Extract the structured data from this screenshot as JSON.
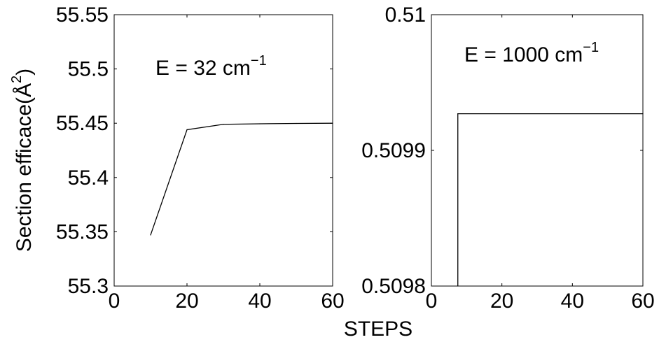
{
  "chart_data": [
    {
      "type": "line",
      "annotation": {
        "prefix": "E = 32 cm",
        "superscript": "−1"
      },
      "ylabel": {
        "base": "Section efficace(Å",
        "superscript": "2",
        "close": ")"
      },
      "xlim": [
        0,
        60
      ],
      "ylim": [
        55.3,
        55.55
      ],
      "xticks": [
        0,
        20,
        40,
        60
      ],
      "xtick_labels": [
        "0",
        "20",
        "40",
        "60"
      ],
      "yticks": [
        55.3,
        55.35,
        55.4,
        55.45,
        55.5,
        55.55
      ],
      "ytick_labels": [
        "55.3",
        "55.35",
        "55.4",
        "55.45",
        "55.5",
        "55.55"
      ],
      "x": [
        10,
        20,
        30,
        40,
        50,
        60
      ],
      "y": [
        55.347,
        55.444,
        55.449,
        55.4495,
        55.4498,
        55.45
      ],
      "color": "#000000",
      "grid": false
    },
    {
      "type": "line",
      "annotation": {
        "prefix": "E = 1000 cm",
        "superscript": "−1"
      },
      "xlim": [
        0,
        60
      ],
      "ylim": [
        0.5098,
        0.51
      ],
      "xticks": [
        0,
        20,
        40,
        60
      ],
      "xtick_labels": [
        "0",
        "20",
        "40",
        "60"
      ],
      "yticks": [
        0.5098,
        0.5099,
        0.51
      ],
      "ytick_labels": [
        "0.5098",
        "0.5099",
        "0.51"
      ],
      "x": [
        7.5,
        7.5,
        60
      ],
      "y": [
        0.5098,
        0.509927,
        0.509927
      ],
      "color": "#000000",
      "grid": false
    }
  ],
  "shared": {
    "xlabel": "STEPS"
  }
}
